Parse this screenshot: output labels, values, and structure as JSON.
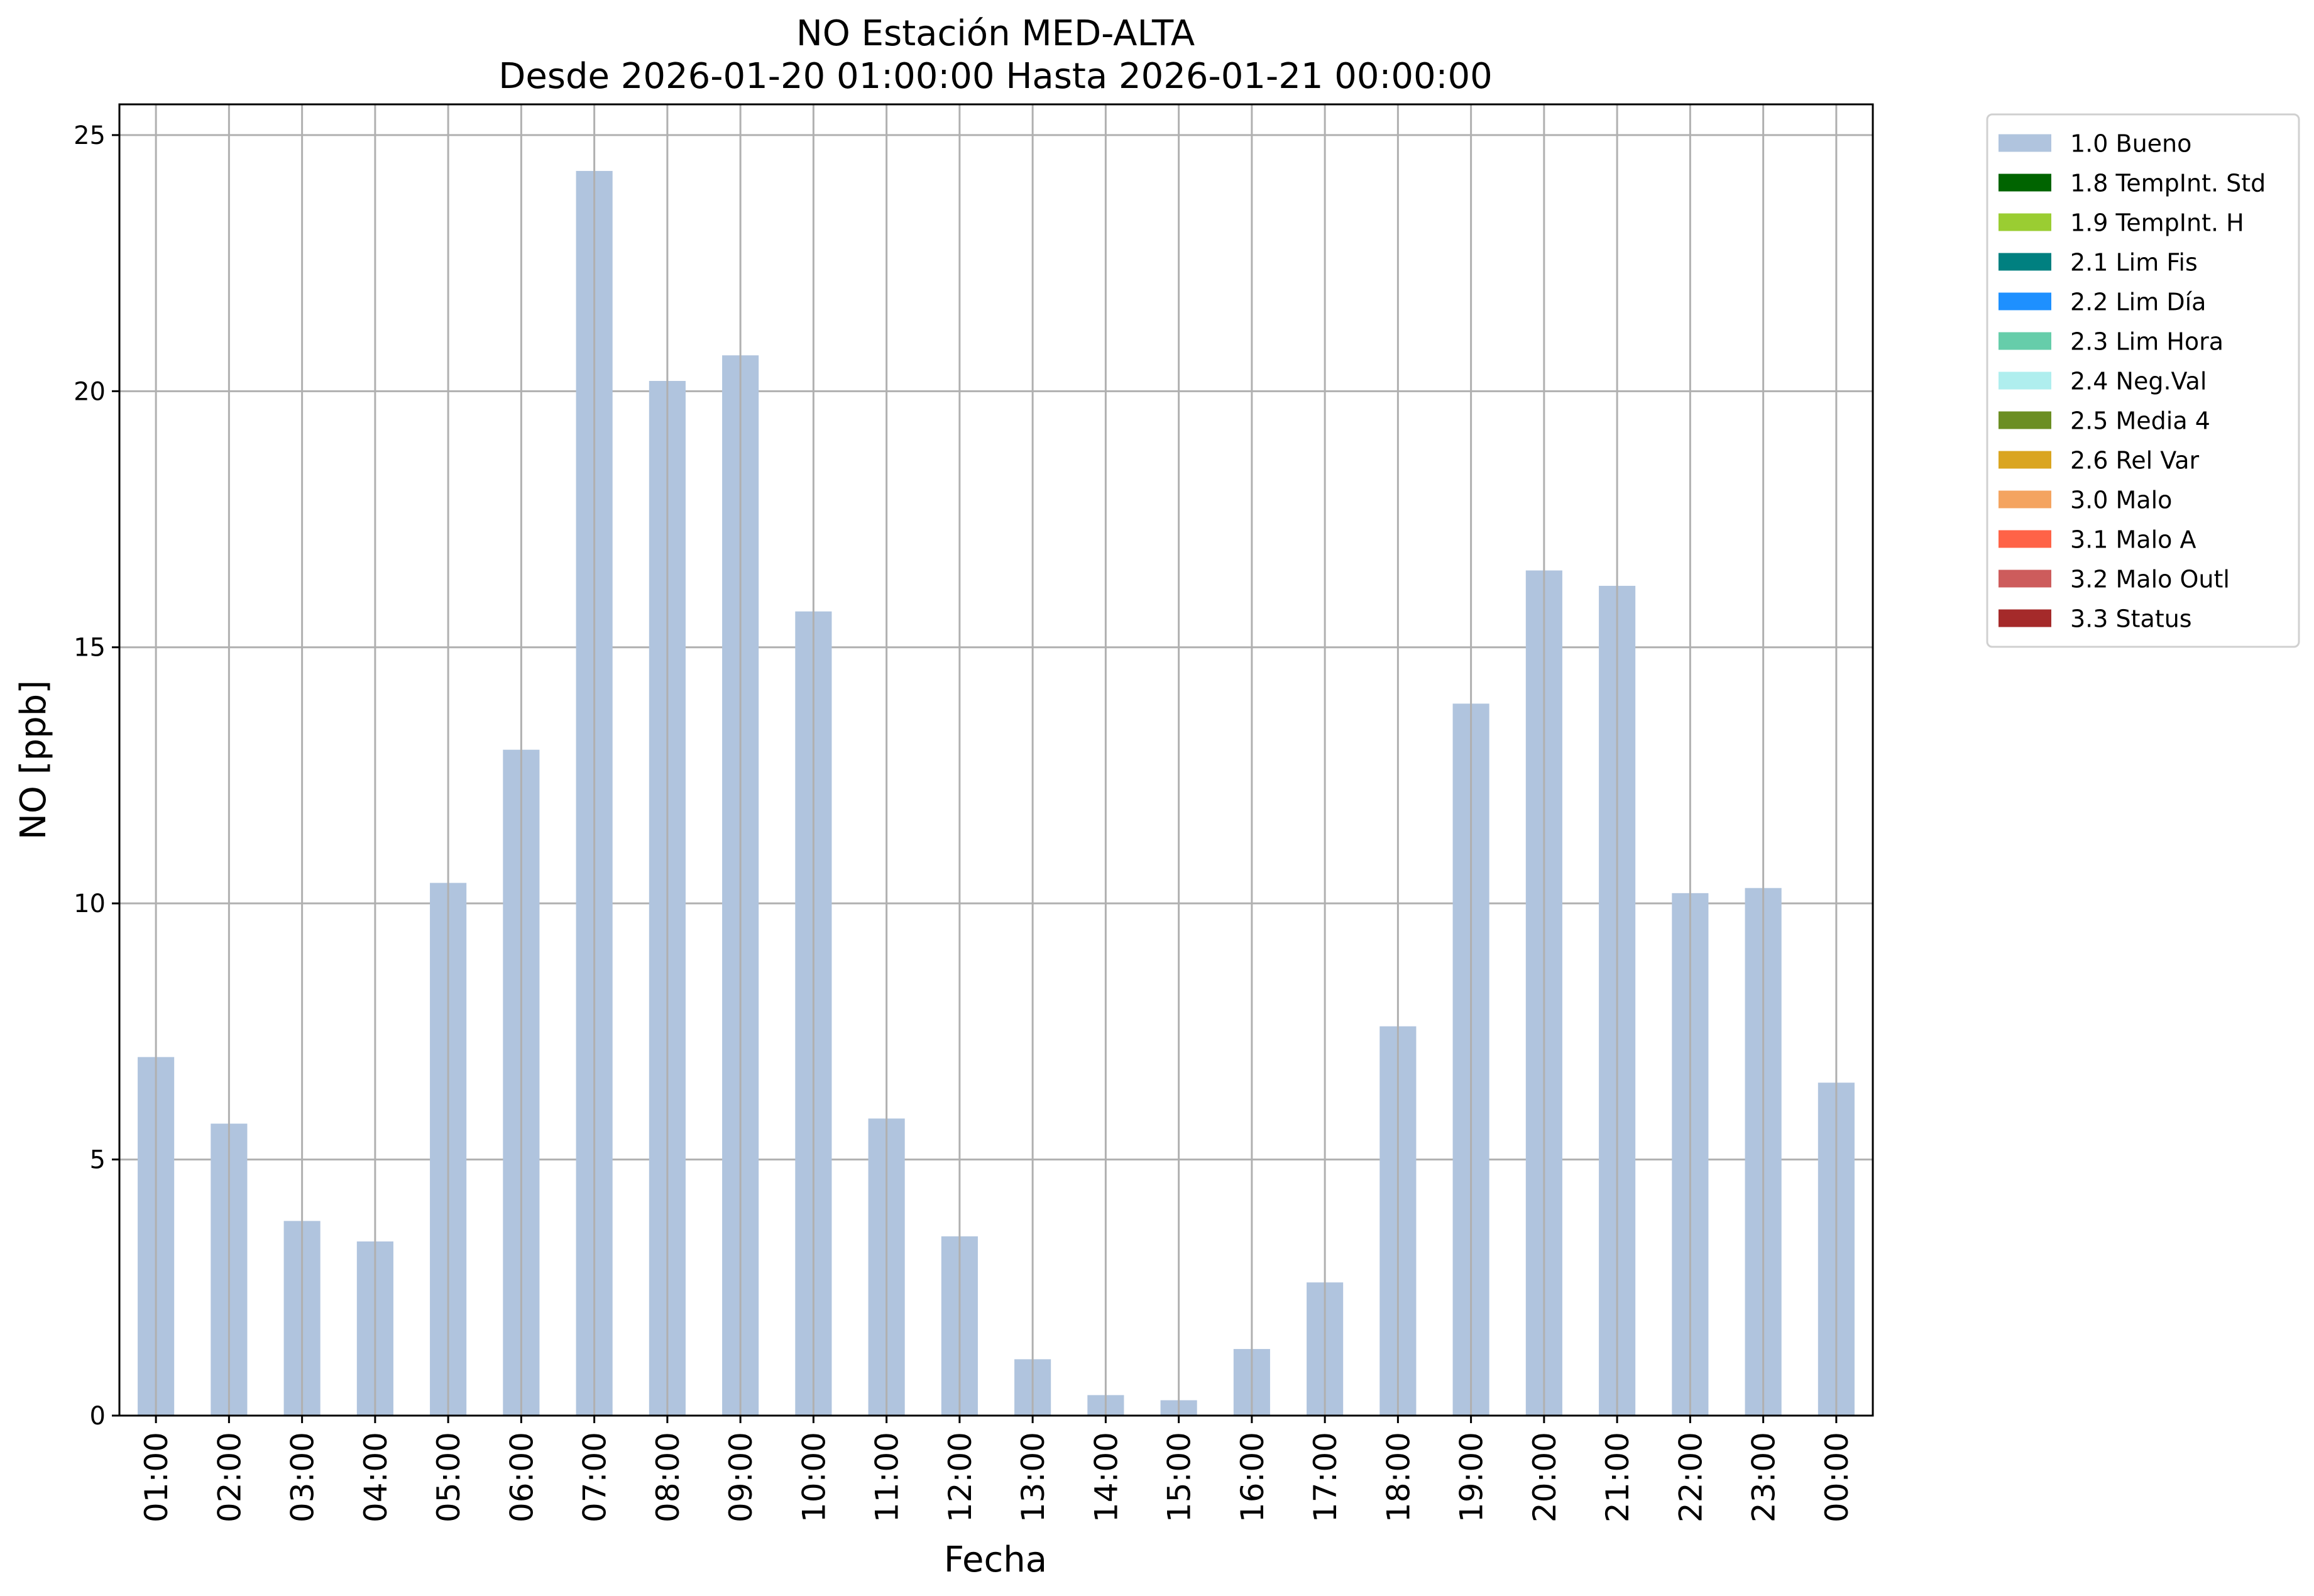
{
  "chart_data": {
    "type": "bar",
    "title": "NO Estación MED-ALTA",
    "subtitle": "Desde 2026-01-20 01:00:00 Hasta 2026-01-21 00:00:00",
    "xlabel": "Fecha",
    "ylabel": "NO [ppb]",
    "ylim": [
      0,
      25.6
    ],
    "yticks": [
      0,
      5,
      10,
      15,
      20,
      25
    ],
    "grid": true,
    "legend_position": "outside-top-right",
    "categories": [
      "01:00",
      "02:00",
      "03:00",
      "04:00",
      "05:00",
      "06:00",
      "07:00",
      "08:00",
      "09:00",
      "10:00",
      "11:00",
      "12:00",
      "13:00",
      "14:00",
      "15:00",
      "16:00",
      "17:00",
      "18:00",
      "19:00",
      "20:00",
      "21:00",
      "22:00",
      "23:00",
      "00:00"
    ],
    "series": [
      {
        "name": "1.0 Bueno",
        "color": "#b0c4de",
        "values": [
          7.0,
          5.7,
          3.8,
          3.4,
          10.4,
          13.0,
          24.3,
          20.2,
          20.7,
          15.7,
          5.8,
          3.5,
          1.1,
          0.4,
          0.3,
          1.3,
          2.6,
          7.6,
          13.9,
          16.5,
          16.2,
          10.2,
          10.3,
          6.5
        ]
      }
    ],
    "legend": [
      {
        "label": "1.0 Bueno",
        "color": "#b0c4de"
      },
      {
        "label": "1.8 TempInt. Std",
        "color": "#006400"
      },
      {
        "label": "1.9 TempInt. H",
        "color": "#9acd32"
      },
      {
        "label": "2.1 Lim Fis",
        "color": "#008080"
      },
      {
        "label": "2.2 Lim Día",
        "color": "#1e90ff"
      },
      {
        "label": "2.3 Lim Hora",
        "color": "#66cdaa"
      },
      {
        "label": "2.4 Neg.Val",
        "color": "#afeeee"
      },
      {
        "label": "2.5 Media 4",
        "color": "#6b8e23"
      },
      {
        "label": "2.6 Rel Var",
        "color": "#daa520"
      },
      {
        "label": "3.0 Malo",
        "color": "#f4a460"
      },
      {
        "label": "3.1 Malo A",
        "color": "#ff6347"
      },
      {
        "label": "3.2 Malo Outl",
        "color": "#cd5c5c"
      },
      {
        "label": "3.3 Status",
        "color": "#a52a2a"
      }
    ]
  }
}
